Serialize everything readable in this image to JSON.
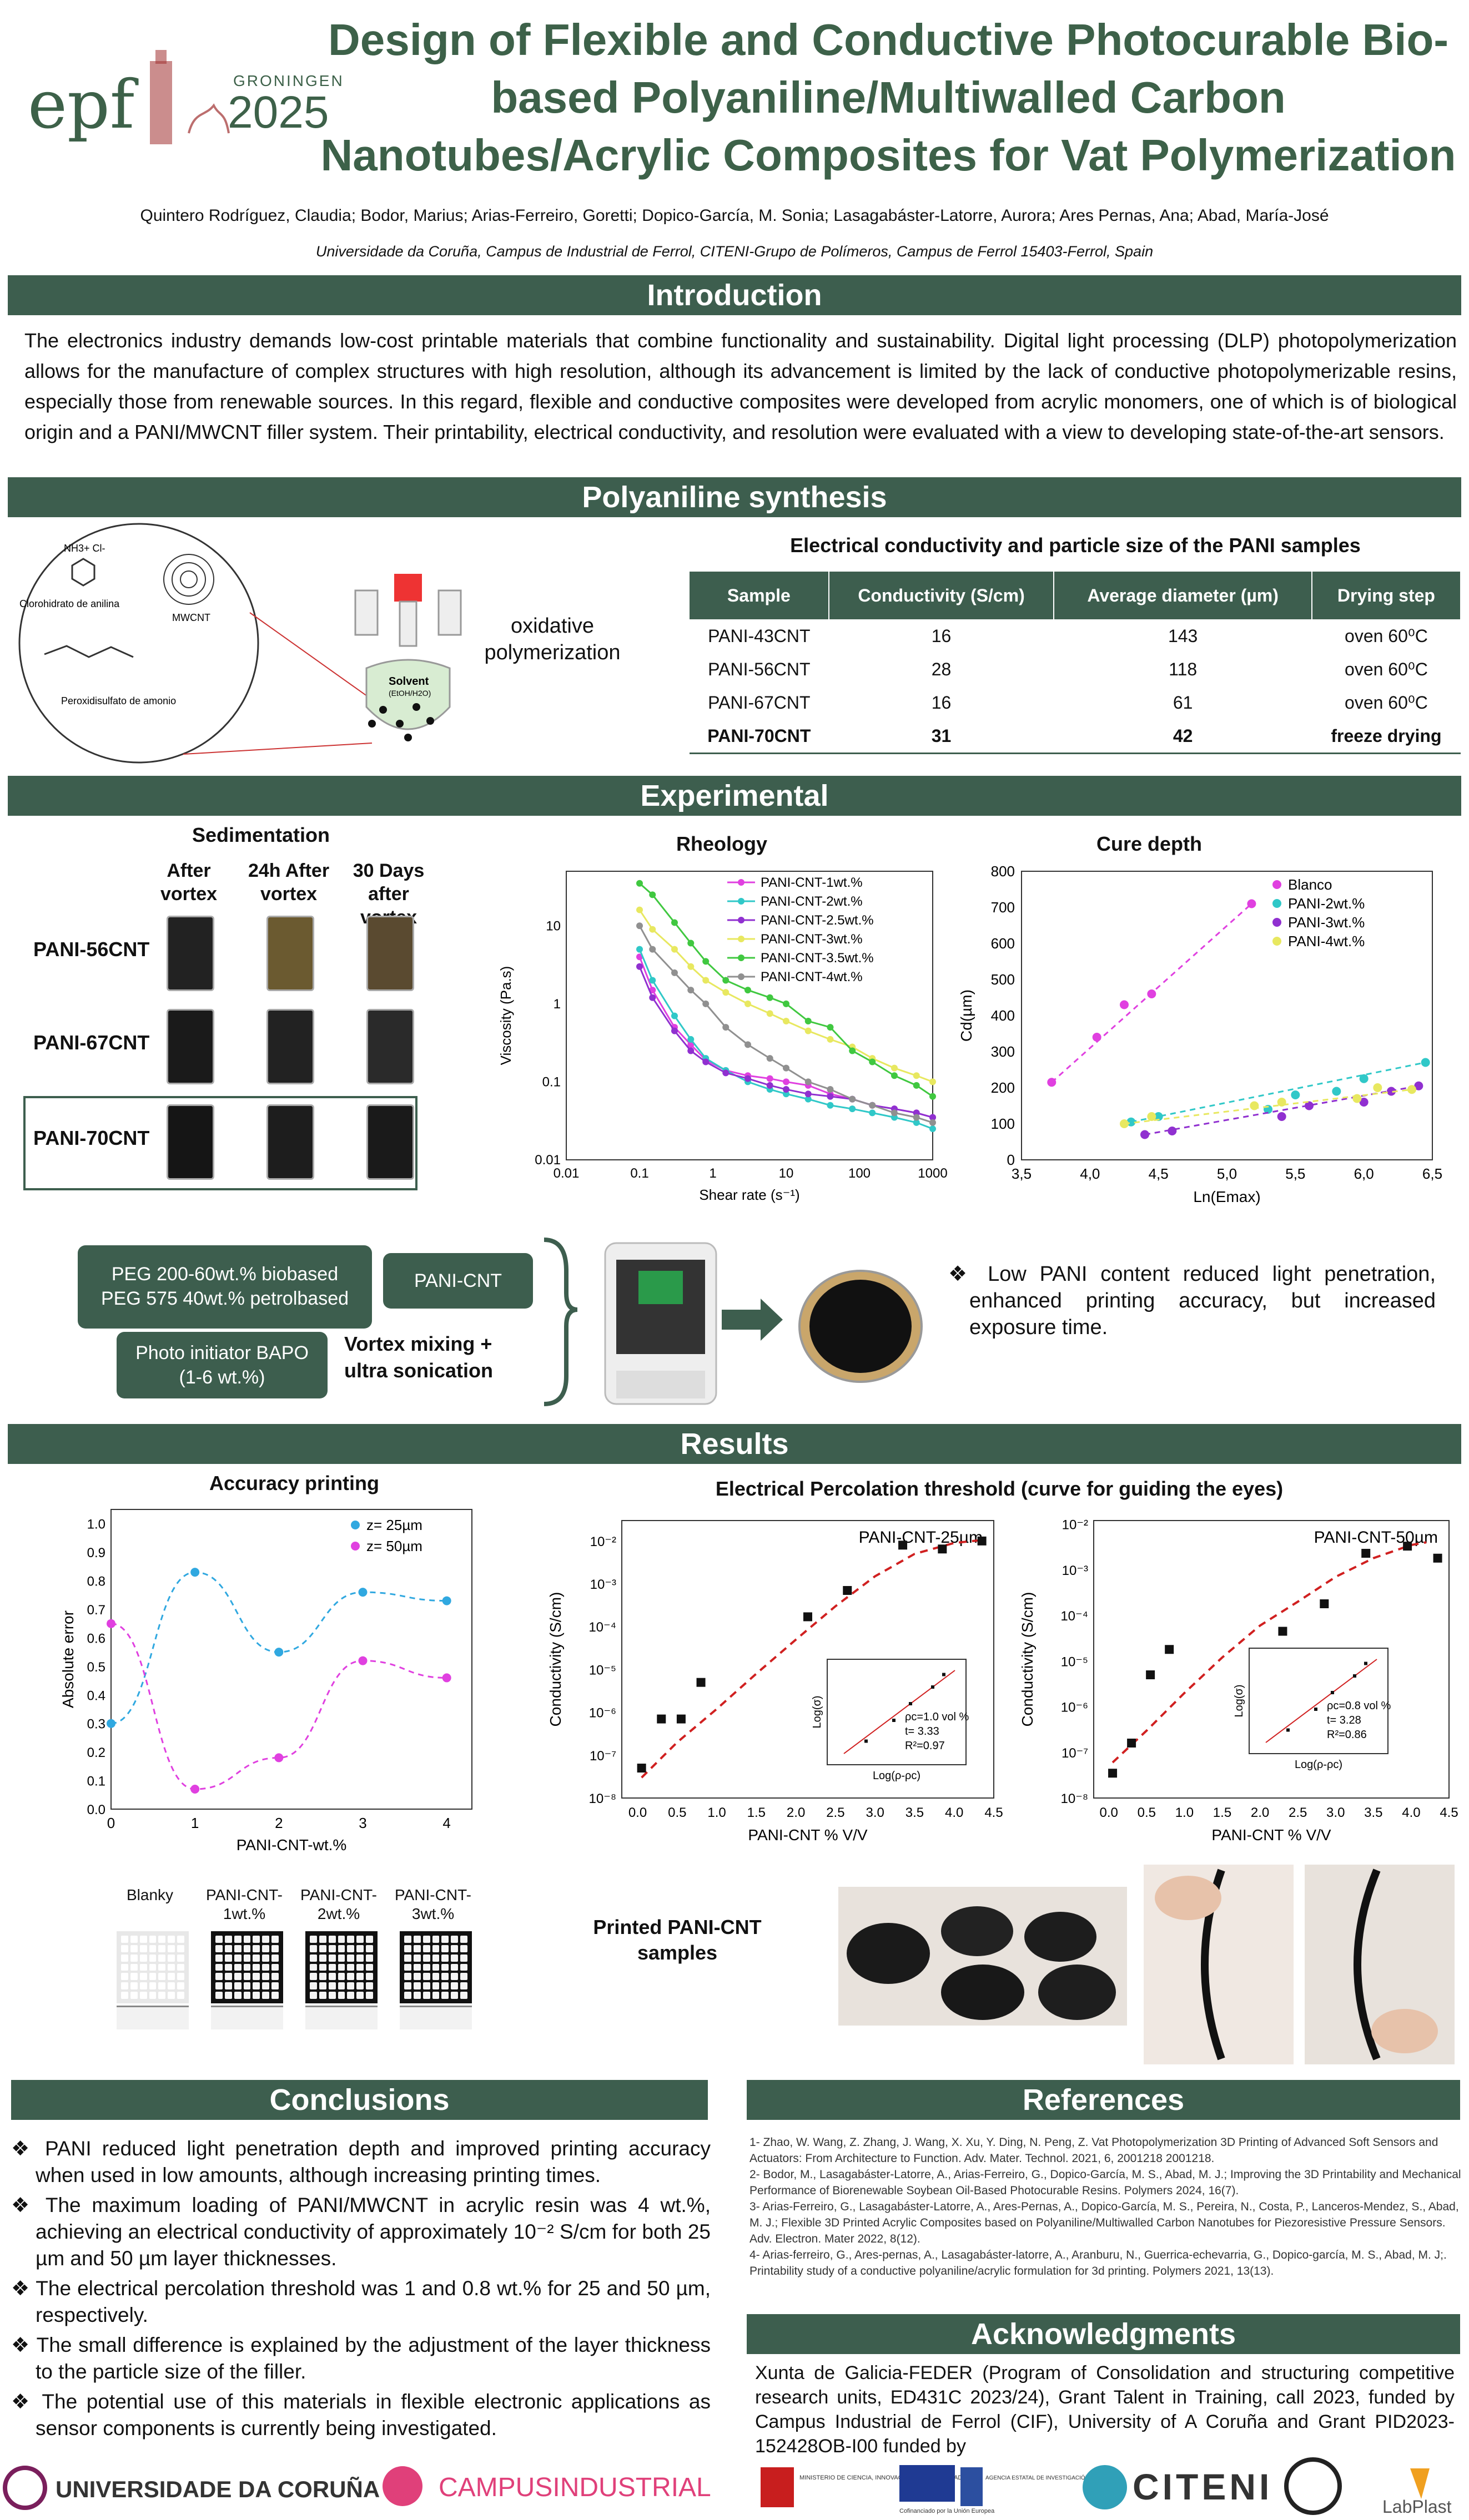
{
  "logo": {
    "text": "epf",
    "city": "GRONINGEN",
    "year": "2025"
  },
  "title": "Design of Flexible and Conductive Photocurable Bio-based Polyaniline/Multiwalled Carbon Nanotubes/Acrylic Composites for Vat Polymerization",
  "authors": "Quintero Rodríguez, Claudia; Bodor, Marius; Arias-Ferreiro, Goretti; Dopico-García, M. Sonia; Lasagabáster-Latorre, Aurora; Ares Pernas, Ana; Abad, María-José",
  "affiliation": "Universidade da Coruña, Campus de Industrial de Ferrol, CITENI-Grupo de Polímeros, Campus de Ferrol 15403-Ferrol, Spain",
  "sections": {
    "introduction": "Introduction",
    "synthesis": "Polyaniline synthesis",
    "experimental": "Experimental",
    "results": "Results",
    "conclusions": "Conclusions",
    "references": "References",
    "acknowledgments": "Acknowledgments"
  },
  "intro_text": "The electronics industry demands low-cost printable materials that combine functionality and sustainability. Digital light processing (DLP) photopolymerization allows for the manufacture of complex structures with high resolution, although its advancement is limited by the lack of conductive photopolymerizable resins, especially those from renewable sources. In this regard, flexible and conductive composites were developed from acrylic monomers, one of which is of biological origin and a PANI/MWCNT filler system. Their printability, electrical conductivity, and resolution were evaluated with a view to developing state-of-the-art sensors.",
  "synthesis": {
    "labels": {
      "aniline": "Clorohidrato de anilina",
      "mwcnt": "MWCNT",
      "persulfate": "Peroxidisulfato de amonio",
      "solvent": "Solvent",
      "solvent_sub": "(EtOH/H2O)",
      "nh3": "NH3+ Cl-"
    },
    "process": "oxidative polymerization",
    "table_title": "Electrical conductivity and particle size of the PANI samples",
    "headers": [
      "Sample",
      "Conductivity (S/cm)",
      "Average diameter (µm)",
      "Drying step"
    ],
    "rows": [
      [
        "PANI-43CNT",
        "16",
        "143",
        "oven 60⁰C"
      ],
      [
        "PANI-56CNT",
        "28",
        "118",
        "oven 60⁰C"
      ],
      [
        "PANI-67CNT",
        "16",
        "61",
        "oven 60⁰C"
      ],
      [
        "PANI-70CNT",
        "31",
        "42",
        "freeze drying"
      ]
    ]
  },
  "sedimentation": {
    "title": "Sedimentation",
    "columns": [
      "After vortex",
      "24h After vortex",
      "30 Days after vortex"
    ],
    "rows": [
      "PANI-56CNT",
      "PANI-67CNT",
      "PANI-70CNT"
    ]
  },
  "rheology_chart": {
    "title": "Rheology",
    "xlabel": "Shear rate (s⁻¹)",
    "ylabel": "Viscosity (Pa.s)",
    "x_ticks": [
      "0.01",
      "0.1",
      "1",
      "10",
      "100",
      "1000"
    ],
    "y_ticks": [
      "0.01",
      "0.1",
      "1",
      "10"
    ]
  },
  "cure_chart": {
    "title": "Cure depth",
    "xlabel": "Ln(Emax)",
    "ylabel": "Cd(µm)",
    "x_ticks": [
      "3,5",
      "4,0",
      "4,5",
      "5,0",
      "5,5",
      "6,0",
      "6,5"
    ],
    "y_ticks": [
      "0",
      "100",
      "200",
      "300",
      "400",
      "500",
      "600",
      "700",
      "800"
    ]
  },
  "formulation": {
    "monomers": "PEG 200-60wt.% biobased\nPEG 575 40wt.% petrolbased",
    "filler": "PANI-CNT",
    "initiator": "Photo initiator BAPO\n(1-6 wt.%)",
    "mixing": "Vortex mixing +\nultra sonication",
    "finding": "Low PANI content reduced light penetration, enhanced printing accuracy, but increased exposure time."
  },
  "accuracy_chart": {
    "title": "Accuracy printing",
    "xlabel": "PANI-CNT-wt.%",
    "ylabel": "Absolute error",
    "x_ticks": [
      "0",
      "1",
      "2",
      "3",
      "4"
    ],
    "y_ticks": [
      "0.0",
      "0.1",
      "0.2",
      "0.3",
      "0.4",
      "0.5",
      "0.6",
      "0.7",
      "0.8",
      "0.9",
      "1.0"
    ]
  },
  "percolation_title": "Electrical Percolation threshold (curve for guiding the eyes)",
  "perc25": {
    "label": "PANI-CNT-25µm",
    "xlabel": "PANI-CNT % V/V",
    "ylabel": "Conductivity (S/cm)",
    "x_ticks": [
      "0.0",
      "0.5",
      "1.0",
      "1.5",
      "2.0",
      "2.5",
      "3.0",
      "3.5",
      "4.0",
      "4.5"
    ],
    "y_ticks": [
      "10⁻⁸",
      "10⁻⁷",
      "10⁻⁶",
      "10⁻⁵",
      "10⁻⁴",
      "10⁻³",
      "10⁻²"
    ],
    "inset_text": [
      "ρc=1.0 vol %",
      "t= 3.33",
      "R²=0.97"
    ],
    "inset_xlabel": "Log(ρ-ρc)",
    "inset_ylabel": "Log(σ)"
  },
  "perc50": {
    "label": "PANI-CNT-50µm",
    "xlabel": "PANI-CNT % V/V",
    "ylabel": "Conductivity (S/cm)",
    "x_ticks": [
      "0.0",
      "0.5",
      "1.0",
      "1.5",
      "2.0",
      "2.5",
      "3.0",
      "3.5",
      "4.0",
      "4.5"
    ],
    "y_ticks": [
      "10⁻⁸",
      "10⁻⁷",
      "10⁻⁶",
      "10⁻⁵",
      "10⁻⁴",
      "10⁻³",
      "10⁻²"
    ],
    "inset_text": [
      "ρc=0.8 vol %",
      "t= 3.28",
      "R²=0.86"
    ],
    "inset_xlabel": "Log(ρ-ρc)",
    "inset_ylabel": "Log(σ)"
  },
  "accuracy_samples": [
    "Blanky",
    "PANI-CNT-\n1wt.%",
    "PANI-CNT-\n2wt.%",
    "PANI-CNT-\n3wt.%"
  ],
  "printed_samples": "Printed PANI-CNT\nsamples",
  "conclusions": [
    "PANI reduced light penetration depth and improved printing accuracy when used in low amounts, although increasing printing times.",
    "The maximum loading of PANI/MWCNT in acrylic resin was 4 wt.%, achieving an electrical conductivity of approximately 10⁻² S/cm for both 25 µm and 50 µm layer thicknesses.",
    "The electrical percolation threshold was 1 and 0.8 wt.% for 25 and 50 µm, respectively.",
    "The small difference is  explained by the adjustment of the layer thickness to the particle size of the filler.",
    "The potential use of this materials in flexible electronic applications as sensor components is currently being investigated."
  ],
  "references": [
    "1- Zhao, W. Wang, Z. Zhang, J. Wang, X. Xu, Y. Ding, N. Peng, Z. Vat Photopolymerization 3D Printing of Advanced Soft Sensors and Actuators: From Architecture to Function. Adv. Mater. Technol. 2021, 6, 2001218 2001218.",
    "2- Bodor, M., Lasagabáster-Latorre, A., Arias-Ferreiro, G., Dopico-García, M. S., Abad, M. J.; Improving the 3D Printability and Mechanical Performance of Biorenewable Soybean Oil-Based Photocurable Resins. Polymers 2024, 16(7).",
    "3- Arias-Ferreiro, G., Lasagabáster-Latorre, A., Ares-Pernas, A., Dopico-García, M. S., Pereira, N., Costa, P., Lanceros-Mendez, S., Abad, M. J.; Flexible 3D Printed Acrylic Composites based on Polyaniline/Multiwalled Carbon Nanotubes for Piezoresistive Pressure Sensors. Adv. Electron. Mater 2022, 8(12).",
    "4- Arias-ferreiro, G., Ares-pernas, A., Lasagabáster-latorre, A., Aranburu, N., Guerrica-echevarria, G., Dopico-garcía, M. S., Abad, M. J;. Printability study of a conductive polyaniline/acrylic formulation for 3d printing. Polymers 2021, 13(13)."
  ],
  "acknowledgments": "Xunta de Galicia-FEDER (Program of Consolidation and structuring competitive research units, ED431C 2023/24), Grant Talent in Training, call 2023, funded by Campus Industrial de Ferrol (CIF), University of A Coruña and Grant PID2023-152428OB-I00 funded by",
  "footer_logos": {
    "udc": "UNIVERSIDADE DA CORUÑA",
    "campus": "CAMPUSINDUSTRIAL",
    "ministerio": "MINISTERIO DE CIENCIA, INNOVACIÓN Y UNIVERSIDADES",
    "eu": "Cofinanciado por la Unión Europea",
    "agencia": "AGENCIA ESTATAL DE INVESTIGACIÓN",
    "citeni": "CITENI",
    "labplast": "LabPlast"
  },
  "chart_data": [
    {
      "type": "line",
      "title": "Rheology",
      "xlabel": "Shear rate (s⁻¹)",
      "ylabel": "Viscosity (Pa.s)",
      "x_scale": "log",
      "y_scale": "log",
      "xlim": [
        0.01,
        1000
      ],
      "ylim": [
        0.01,
        50
      ],
      "legend": "top-right",
      "series": [
        {
          "name": "PANI-CNT-1wt.%",
          "color": "#e040e0",
          "x": [
            0.1,
            0.15,
            0.3,
            0.5,
            0.8,
            1.5,
            3,
            6,
            10,
            20,
            40,
            80,
            150,
            300,
            600,
            1000
          ],
          "y": [
            4,
            1.5,
            0.5,
            0.3,
            0.19,
            0.14,
            0.12,
            0.11,
            0.1,
            0.09,
            0.07,
            0.06,
            0.05,
            0.045,
            0.04,
            0.035
          ]
        },
        {
          "name": "PANI-CNT-2wt.%",
          "color": "#30c8c8",
          "x": [
            0.1,
            0.15,
            0.3,
            0.5,
            0.8,
            1.5,
            3,
            6,
            10,
            20,
            40,
            80,
            150,
            300,
            600,
            1000
          ],
          "y": [
            5,
            2,
            0.7,
            0.35,
            0.2,
            0.14,
            0.1,
            0.08,
            0.07,
            0.06,
            0.05,
            0.045,
            0.04,
            0.035,
            0.03,
            0.025
          ]
        },
        {
          "name": "PANI-CNT-2.5wt.%",
          "color": "#9030d0",
          "x": [
            0.1,
            0.15,
            0.3,
            0.5,
            0.8,
            1.5,
            3,
            6,
            10,
            20,
            40,
            80,
            150,
            300,
            600,
            1000
          ],
          "y": [
            3,
            1.2,
            0.45,
            0.25,
            0.18,
            0.13,
            0.11,
            0.09,
            0.08,
            0.07,
            0.065,
            0.06,
            0.05,
            0.045,
            0.04,
            0.035
          ]
        },
        {
          "name": "PANI-CNT-3wt.%",
          "color": "#e8e860",
          "x": [
            0.1,
            0.15,
            0.3,
            0.5,
            0.8,
            1.5,
            3,
            6,
            10,
            20,
            40,
            80,
            150,
            300,
            600,
            1000
          ],
          "y": [
            16,
            9,
            5,
            3,
            2,
            1.4,
            1,
            0.75,
            0.6,
            0.45,
            0.35,
            0.28,
            0.2,
            0.15,
            0.12,
            0.1
          ]
        },
        {
          "name": "PANI-CNT-3.5wt.%",
          "color": "#40c840",
          "x": [
            0.1,
            0.15,
            0.3,
            0.5,
            0.8,
            1.5,
            3,
            6,
            10,
            20,
            40,
            80,
            150,
            300,
            600,
            1000
          ],
          "y": [
            35,
            25,
            11,
            6,
            3.5,
            2,
            1.5,
            1.2,
            1,
            0.6,
            0.5,
            0.25,
            0.18,
            0.12,
            0.09,
            0.065
          ]
        },
        {
          "name": "PANI-CNT-4wt.%",
          "color": "#909090",
          "x": [
            0.1,
            0.15,
            0.3,
            0.5,
            0.8,
            1.5,
            3,
            6,
            10,
            20,
            40,
            80,
            150,
            300,
            600,
            1000
          ],
          "y": [
            10,
            5,
            2.5,
            1.5,
            1,
            0.5,
            0.3,
            0.2,
            0.15,
            0.1,
            0.08,
            0.06,
            0.05,
            0.04,
            0.035,
            0.03
          ]
        }
      ]
    },
    {
      "type": "scatter",
      "title": "Cure depth",
      "xlabel": "Ln(Emax)",
      "ylabel": "Cd(µm)",
      "xlim": [
        3.5,
        6.5
      ],
      "ylim": [
        0,
        800
      ],
      "legend": "top-right",
      "series": [
        {
          "name": "Blanco",
          "color": "#e040e0",
          "x": [
            3.72,
            4.05,
            4.25,
            4.45,
            5.18
          ],
          "y": [
            215,
            340,
            430,
            460,
            710
          ]
        },
        {
          "name": "PANI-2wt.%",
          "color": "#30c8c8",
          "x": [
            4.3,
            4.5,
            5.3,
            5.5,
            5.8,
            6.0,
            6.45
          ],
          "y": [
            105,
            120,
            140,
            180,
            190,
            225,
            270
          ]
        },
        {
          "name": "PANI-3wt.%",
          "color": "#9030d0",
          "x": [
            4.4,
            4.6,
            5.4,
            5.6,
            6.0,
            6.2,
            6.4
          ],
          "y": [
            70,
            80,
            120,
            150,
            160,
            190,
            205
          ]
        },
        {
          "name": "PANI-4wt.%",
          "color": "#e8e860",
          "x": [
            4.25,
            4.45,
            5.2,
            5.4,
            5.95,
            6.1,
            6.35
          ],
          "y": [
            100,
            120,
            150,
            160,
            170,
            200,
            195
          ]
        }
      ]
    },
    {
      "type": "line",
      "title": "Accuracy printing",
      "xlabel": "PANI-CNT-wt.%",
      "ylabel": "Absolute error",
      "xlim": [
        0,
        4.3
      ],
      "ylim": [
        0,
        1.05
      ],
      "legend": "top-right",
      "series": [
        {
          "name": "z= 25µm",
          "color": "#30a8e0",
          "x": [
            0,
            1,
            2,
            3,
            4
          ],
          "y": [
            0.3,
            0.83,
            0.55,
            0.76,
            0.73
          ]
        },
        {
          "name": "z= 50µm",
          "color": "#e040e0",
          "x": [
            0,
            1,
            2,
            3,
            4
          ],
          "y": [
            0.65,
            0.07,
            0.18,
            0.52,
            0.46
          ]
        }
      ]
    },
    {
      "type": "scatter",
      "title": "PANI-CNT-25µm",
      "xlabel": "PANI-CNT % V/V",
      "ylabel": "Conductivity (S/cm)",
      "y_scale": "log",
      "xlim": [
        -0.2,
        4.5
      ],
      "ylim": [
        1e-08,
        0.03
      ],
      "points_x": [
        0.05,
        0.3,
        0.55,
        0.8,
        2.15,
        2.65,
        3.35,
        3.85,
        4.35
      ],
      "points_y": [
        5e-08,
        7e-07,
        7e-07,
        5e-06,
        0.00017,
        0.0007,
        0.008,
        0.0065,
        0.01
      ],
      "fit_x": [
        0.05,
        0.5,
        1,
        1.5,
        2,
        2.5,
        3,
        3.5,
        4,
        4.35
      ],
      "fit_y": [
        3e-08,
        2e-07,
        1.2e-06,
        8e-06,
        5e-05,
        0.0003,
        0.0015,
        0.005,
        0.009,
        0.0105
      ]
    },
    {
      "type": "scatter",
      "title": "PANI-CNT-50µm",
      "xlabel": "PANI-CNT % V/V",
      "ylabel": "Conductivity (S/cm)",
      "y_scale": "log",
      "xlim": [
        -0.2,
        4.5
      ],
      "ylim": [
        1e-08,
        0.012
      ],
      "points_x": [
        0.05,
        0.3,
        0.55,
        0.8,
        2.3,
        2.85,
        3.4,
        3.95,
        4.35
      ],
      "points_y": [
        3.5e-08,
        1.6e-07,
        5e-06,
        1.8e-05,
        4.5e-05,
        0.00018,
        0.0023,
        0.0033,
        0.0018
      ],
      "fit_x": [
        0.05,
        0.5,
        1,
        1.5,
        2,
        2.5,
        3,
        3.5,
        4,
        4.2
      ],
      "fit_y": [
        6e-08,
        3e-07,
        2e-06,
        1.2e-05,
        6e-05,
        0.0002,
        0.0007,
        0.0018,
        0.0035,
        0.004
      ]
    }
  ]
}
